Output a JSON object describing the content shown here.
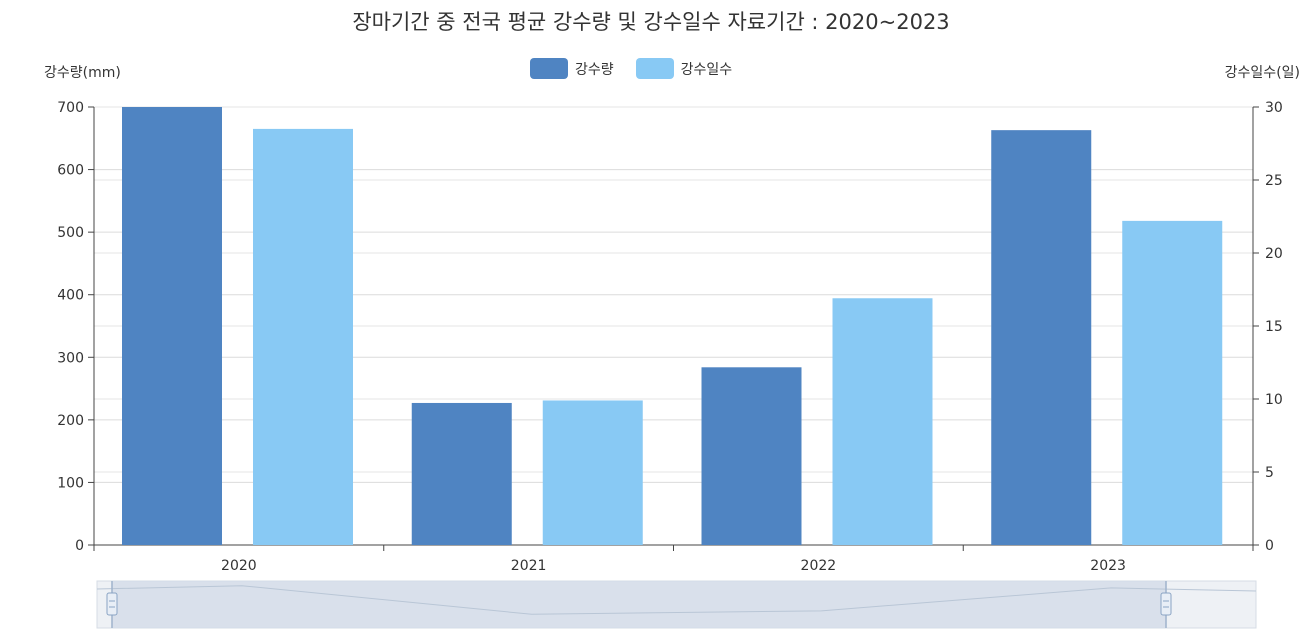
{
  "chart_data": {
    "type": "bar",
    "title": "장마기간 중 전국 평균 강수량 및 강수일수 자료기간 : 2020~2023",
    "categories": [
      "2020",
      "2021",
      "2022",
      "2023"
    ],
    "series": [
      {
        "name": "강수량",
        "axis": "left",
        "color": "#4f84c2",
        "values": [
          700,
          227,
          284,
          663
        ]
      },
      {
        "name": "강수일수",
        "axis": "right",
        "color": "#88c9f4",
        "values": [
          28.5,
          9.9,
          16.9,
          22.2
        ]
      }
    ],
    "y_left": {
      "label": "강수량(mm)",
      "range": [
        0,
        700
      ],
      "ticks": [
        "0",
        "100",
        "200",
        "300",
        "400",
        "500",
        "600",
        "700"
      ]
    },
    "y_right": {
      "label": "강수일수(일)",
      "range": [
        0,
        30
      ],
      "ticks": [
        "0",
        "5",
        "10",
        "15",
        "20",
        "25",
        "30"
      ]
    },
    "grid": true,
    "legend_position": "top-center",
    "data_zoom": {
      "start_pct": 0,
      "end_pct": 100
    }
  }
}
